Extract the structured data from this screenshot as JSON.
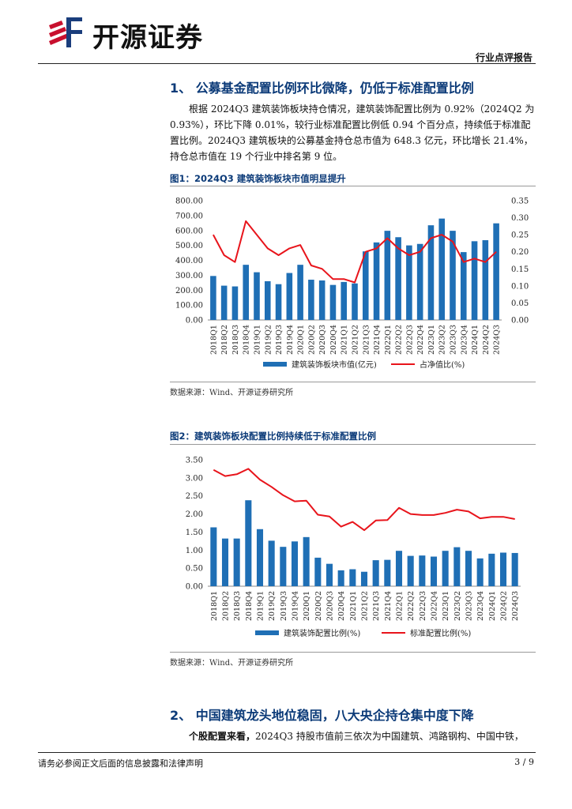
{
  "header": {
    "brand": "开源证券",
    "doc_type": "行业点评报告"
  },
  "section1": {
    "title": "1、 公募基金配置比例环比微降，仍低于标准配置比例",
    "para_lines": [
      "根据 2024Q3 建筑装饰板块持仓情况，建筑装饰配置比例为 0.92%（2024Q2 为",
      "0.93%），环比下降 0.01%，较行业标准配置比例低 0.94 个百分点，持续低于标准配",
      "置比例。2024Q3 建筑板块的公募基金持仓总市值为 648.3 亿元，环比增长 21.4%，",
      "持仓总市值在 19 个行业中排名第 9 位。"
    ]
  },
  "figure1": {
    "title": "图1：2024Q3 建筑装饰板块市值明显提升",
    "source": "数据来源：Wind、开源证券研究所"
  },
  "figure2": {
    "title": "图2：建筑装饰板块配置比例持续低于标准配置比例",
    "source": "数据来源：Wind、开源证券研究所"
  },
  "section2": {
    "title": "2、 中国建筑龙头地位稳固，八大央企持仓集中度下降",
    "lead": "个股配置来看，",
    "para": "2024Q3 持股市值前三依次为中国建筑、鸿路钢构、中国中铁，"
  },
  "footer": {
    "disclaimer": "请务必参阅正文后面的信息披露和法律声明",
    "page": "3 / 9"
  },
  "chart_data": [
    {
      "type": "bar",
      "categories": [
        "2018Q1",
        "2018Q2",
        "2018Q3",
        "2018Q4",
        "2019Q1",
        "2019Q2",
        "2019Q3",
        "2019Q4",
        "2020Q1",
        "2020Q2",
        "2020Q3",
        "2020Q4",
        "2021Q1",
        "2021Q2",
        "2021Q3",
        "2021Q4",
        "2022Q1",
        "2022Q2",
        "2022Q3",
        "2022Q4",
        "2023Q1",
        "2023Q2",
        "2023Q3",
        "2023Q4",
        "2024Q1",
        "2024Q2",
        "2024Q3"
      ],
      "series": [
        {
          "name": "建筑装饰板块市值(亿元)",
          "axis": "left",
          "color": "#1f6fb5",
          "values": [
            295,
            230,
            225,
            370,
            320,
            260,
            240,
            315,
            370,
            270,
            265,
            235,
            255,
            245,
            460,
            520,
            598,
            555,
            500,
            510,
            635,
            680,
            598,
            455,
            528,
            535,
            648
          ]
        },
        {
          "name": "占净值比(%)",
          "type": "line",
          "axis": "right",
          "color": "#e8141b",
          "values": [
            0.25,
            0.19,
            0.17,
            0.29,
            0.25,
            0.21,
            0.19,
            0.21,
            0.22,
            0.16,
            0.15,
            0.12,
            0.12,
            0.11,
            0.2,
            0.21,
            0.24,
            0.21,
            0.19,
            0.2,
            0.24,
            0.25,
            0.23,
            0.17,
            0.18,
            0.17,
            0.2
          ]
        }
      ],
      "ylim": [
        0,
        800
      ],
      "y2lim": [
        0,
        0.35
      ],
      "yticks": [
        "0.00",
        "100.00",
        "200.00",
        "300.00",
        "400.00",
        "500.00",
        "600.00",
        "700.00",
        "800.00"
      ],
      "y2ticks": [
        "0.00",
        "0.05",
        "0.10",
        "0.15",
        "0.20",
        "0.25",
        "0.30",
        "0.35"
      ],
      "legend": "bottom"
    },
    {
      "type": "bar",
      "categories": [
        "2018Q1",
        "2018Q2",
        "2018Q3",
        "2018Q4",
        "2019Q1",
        "2019Q2",
        "2019Q3",
        "2019Q4",
        "2020Q1",
        "2020Q2",
        "2020Q3",
        "2020Q4",
        "2021Q1",
        "2021Q2",
        "2021Q3",
        "2021Q4",
        "2022Q1",
        "2022Q2",
        "2022Q3",
        "2022Q4",
        "2023Q1",
        "2023Q2",
        "2023Q3",
        "2023Q4",
        "2024Q1",
        "2024Q2",
        "2024Q3"
      ],
      "series": [
        {
          "name": "建筑装饰配置比例(%)",
          "color": "#1f6fb5",
          "values": [
            1.63,
            1.32,
            1.32,
            2.38,
            1.58,
            1.26,
            1.09,
            1.24,
            1.36,
            0.79,
            0.62,
            0.44,
            0.47,
            0.4,
            0.72,
            0.73,
            0.98,
            0.84,
            0.85,
            0.82,
            0.98,
            1.08,
            0.98,
            0.77,
            0.9,
            0.93,
            0.92
          ]
        },
        {
          "name": "标准配置比例(%)",
          "type": "line",
          "color": "#e8141b",
          "values": [
            3.22,
            3.05,
            3.1,
            3.25,
            2.95,
            2.75,
            2.52,
            2.35,
            2.37,
            1.98,
            1.93,
            1.65,
            1.78,
            1.55,
            1.82,
            1.83,
            2.17,
            2.0,
            1.97,
            1.97,
            2.03,
            2.12,
            2.07,
            1.88,
            1.92,
            1.92,
            1.86
          ]
        }
      ],
      "ylim": [
        0,
        3.5
      ],
      "yticks": [
        "0.00",
        "0.50",
        "1.00",
        "1.50",
        "2.00",
        "2.50",
        "3.00",
        "3.50"
      ],
      "legend": "bottom"
    }
  ]
}
